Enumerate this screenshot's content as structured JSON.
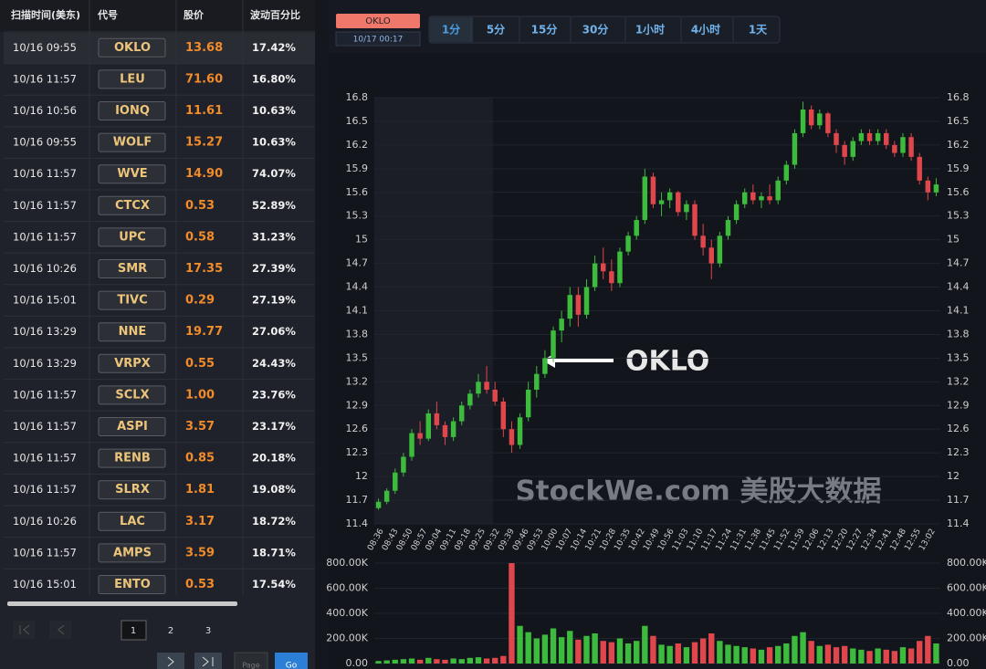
{
  "table": {
    "headers": [
      "扫描时间(美东)",
      "代号",
      "股价",
      "波动百分比"
    ],
    "rows": [
      [
        "10/16 09:55",
        "OKLO",
        "13.68",
        "17.42%"
      ],
      [
        "10/16 11:57",
        "LEU",
        "71.60",
        "16.80%"
      ],
      [
        "10/16 10:56",
        "IONQ",
        "11.61",
        "10.63%"
      ],
      [
        "10/16 09:55",
        "WOLF",
        "15.27",
        "10.63%"
      ],
      [
        "10/16 11:57",
        "WVE",
        "14.90",
        "74.07%"
      ],
      [
        "10/16 11:57",
        "CTCX",
        "0.53",
        "52.89%"
      ],
      [
        "10/16 11:57",
        "UPC",
        "0.58",
        "31.23%"
      ],
      [
        "10/16 10:26",
        "SMR",
        "17.35",
        "27.39%"
      ],
      [
        "10/16 15:01",
        "TIVC",
        "0.29",
        "27.19%"
      ],
      [
        "10/16 13:29",
        "NNE",
        "19.77",
        "27.06%"
      ],
      [
        "10/16 13:29",
        "VRPX",
        "0.55",
        "24.43%"
      ],
      [
        "10/16 11:57",
        "SCLX",
        "1.00",
        "23.76%"
      ],
      [
        "10/16 11:57",
        "ASPI",
        "3.57",
        "23.17%"
      ],
      [
        "10/16 11:57",
        "RENB",
        "0.85",
        "20.18%"
      ],
      [
        "10/16 11:57",
        "SLRX",
        "1.81",
        "19.08%"
      ],
      [
        "10/16 10:26",
        "LAC",
        "3.17",
        "18.72%"
      ],
      [
        "10/16 11:57",
        "AMPS",
        "3.59",
        "18.71%"
      ],
      [
        "10/16 15:01",
        "ENTO",
        "0.53",
        "17.54%"
      ]
    ]
  },
  "pagination": {
    "pages": [
      "1",
      "2",
      "3"
    ],
    "page_placeholder": "Page",
    "go": "Go"
  },
  "toolbar": {
    "symbol": "OKLO",
    "time": "10/17 00:17",
    "intervals": [
      "1分",
      "5分",
      "15分",
      "30分",
      "1小时",
      "4小时",
      "1天"
    ]
  },
  "chart_data": {
    "type": "candlestick",
    "annotation": "OKLO",
    "watermark": "StockWe.com 美股大数据",
    "up_color": "#3dbb3d",
    "down_color": "#e0474c",
    "grid": true,
    "ylim": [
      11.4,
      16.8
    ],
    "yticks": [
      11.4,
      11.7,
      12,
      12.3,
      12.6,
      12.9,
      13.2,
      13.5,
      13.8,
      14.1,
      14.4,
      14.7,
      15,
      15.3,
      15.6,
      15.9,
      16.2,
      16.5,
      16.8
    ],
    "x_labels": [
      "08:36",
      "08:43",
      "08:50",
      "08:57",
      "09:04",
      "09:11",
      "09:18",
      "09:25",
      "09:32",
      "09:39",
      "09:46",
      "09:53",
      "10:00",
      "10:07",
      "10:14",
      "10:21",
      "10:28",
      "10:35",
      "10:42",
      "10:49",
      "10:56",
      "11:03",
      "11:10",
      "11:17",
      "11:24",
      "11:31",
      "11:38",
      "11:45",
      "11:52",
      "11:59",
      "12:06",
      "12:13",
      "12:20",
      "12:27",
      "12:34",
      "12:41",
      "12:48",
      "12:55",
      "13:02"
    ],
    "candles": [
      [
        11.6,
        11.72,
        11.58,
        11.68
      ],
      [
        11.68,
        11.85,
        11.65,
        11.82
      ],
      [
        11.82,
        12.1,
        11.78,
        12.05
      ],
      [
        12.05,
        12.3,
        12.0,
        12.25
      ],
      [
        12.25,
        12.6,
        12.2,
        12.55
      ],
      [
        12.55,
        12.7,
        12.4,
        12.48
      ],
      [
        12.48,
        12.85,
        12.45,
        12.8
      ],
      [
        12.8,
        12.95,
        12.6,
        12.65
      ],
      [
        12.65,
        12.7,
        12.4,
        12.5
      ],
      [
        12.5,
        12.75,
        12.45,
        12.7
      ],
      [
        12.7,
        12.95,
        12.65,
        12.9
      ],
      [
        12.9,
        13.1,
        12.85,
        13.05
      ],
      [
        13.05,
        13.3,
        13.0,
        13.2
      ],
      [
        13.2,
        13.4,
        13.05,
        13.1
      ],
      [
        13.1,
        13.2,
        12.9,
        12.95
      ],
      [
        12.95,
        13.0,
        12.5,
        12.6
      ],
      [
        12.6,
        12.7,
        12.3,
        12.4
      ],
      [
        12.4,
        12.8,
        12.35,
        12.75
      ],
      [
        12.75,
        13.2,
        12.7,
        13.1
      ],
      [
        13.1,
        13.4,
        13.0,
        13.3
      ],
      [
        13.3,
        13.6,
        13.25,
        13.5
      ],
      [
        13.5,
        13.9,
        13.45,
        13.85
      ],
      [
        13.85,
        14.1,
        13.7,
        14.0
      ],
      [
        14.0,
        14.4,
        13.9,
        14.3
      ],
      [
        14.3,
        14.4,
        13.9,
        14.05
      ],
      [
        14.05,
        14.5,
        14.0,
        14.4
      ],
      [
        14.4,
        14.8,
        14.35,
        14.7
      ],
      [
        14.7,
        14.9,
        14.5,
        14.6
      ],
      [
        14.6,
        14.75,
        14.35,
        14.45
      ],
      [
        14.45,
        14.9,
        14.4,
        14.85
      ],
      [
        14.85,
        15.1,
        14.8,
        15.05
      ],
      [
        15.05,
        15.3,
        15.0,
        15.25
      ],
      [
        15.25,
        15.9,
        15.2,
        15.8
      ],
      [
        15.8,
        15.85,
        15.4,
        15.45
      ],
      [
        15.45,
        15.6,
        15.3,
        15.5
      ],
      [
        15.5,
        15.65,
        15.4,
        15.6
      ],
      [
        15.6,
        15.62,
        15.3,
        15.35
      ],
      [
        15.35,
        15.5,
        15.25,
        15.45
      ],
      [
        15.45,
        15.5,
        15.0,
        15.05
      ],
      [
        15.05,
        15.2,
        14.8,
        14.9
      ],
      [
        14.9,
        15.0,
        14.5,
        14.7
      ],
      [
        14.7,
        15.1,
        14.65,
        15.05
      ],
      [
        15.05,
        15.3,
        15.0,
        15.25
      ],
      [
        15.25,
        15.5,
        15.2,
        15.45
      ],
      [
        15.45,
        15.65,
        15.4,
        15.6
      ],
      [
        15.6,
        15.7,
        15.45,
        15.5
      ],
      [
        15.5,
        15.6,
        15.4,
        15.55
      ],
      [
        15.55,
        15.7,
        15.45,
        15.5
      ],
      [
        15.5,
        15.8,
        15.45,
        15.75
      ],
      [
        15.75,
        16.0,
        15.7,
        15.95
      ],
      [
        15.95,
        16.4,
        15.9,
        16.35
      ],
      [
        16.35,
        16.75,
        16.3,
        16.65
      ],
      [
        16.65,
        16.7,
        16.4,
        16.45
      ],
      [
        16.45,
        16.65,
        16.4,
        16.6
      ],
      [
        16.6,
        16.62,
        16.3,
        16.35
      ],
      [
        16.35,
        16.4,
        16.1,
        16.2
      ],
      [
        16.2,
        16.25,
        15.95,
        16.05
      ],
      [
        16.05,
        16.3,
        16.0,
        16.25
      ],
      [
        16.25,
        16.4,
        16.2,
        16.35
      ],
      [
        16.35,
        16.4,
        16.2,
        16.25
      ],
      [
        16.25,
        16.4,
        16.2,
        16.35
      ],
      [
        16.35,
        16.4,
        16.15,
        16.2
      ],
      [
        16.2,
        16.25,
        16.05,
        16.1
      ],
      [
        16.1,
        16.35,
        16.05,
        16.3
      ],
      [
        16.3,
        16.35,
        16.0,
        16.05
      ],
      [
        16.05,
        16.1,
        15.7,
        15.75
      ],
      [
        15.75,
        15.8,
        15.5,
        15.6
      ],
      [
        15.6,
        15.78,
        15.55,
        15.7
      ]
    ],
    "volumes": [
      20000,
      25000,
      30000,
      35000,
      40000,
      30000,
      45000,
      35000,
      30000,
      40000,
      35000,
      45000,
      50000,
      40000,
      45000,
      60000,
      800000,
      300000,
      250000,
      200000,
      230000,
      280000,
      210000,
      260000,
      190000,
      220000,
      240000,
      180000,
      170000,
      200000,
      160000,
      180000,
      300000,
      220000,
      150000,
      140000,
      160000,
      130000,
      170000,
      200000,
      240000,
      180000,
      150000,
      140000,
      130000,
      120000,
      110000,
      130000,
      140000,
      160000,
      220000,
      250000,
      180000,
      140000,
      150000,
      130000,
      140000,
      120000,
      110000,
      100000,
      120000,
      110000,
      100000,
      130000,
      120000,
      180000,
      220000,
      160000
    ],
    "vlim": [
      0,
      800000
    ],
    "vticks": [
      {
        "value": 0,
        "label": "0.00"
      },
      {
        "value": 200000,
        "label": "200.00K"
      },
      {
        "value": 400000,
        "label": "400.00K"
      },
      {
        "value": 600000,
        "label": "600.00K"
      },
      {
        "value": 800000,
        "label": "800.00K"
      }
    ]
  }
}
